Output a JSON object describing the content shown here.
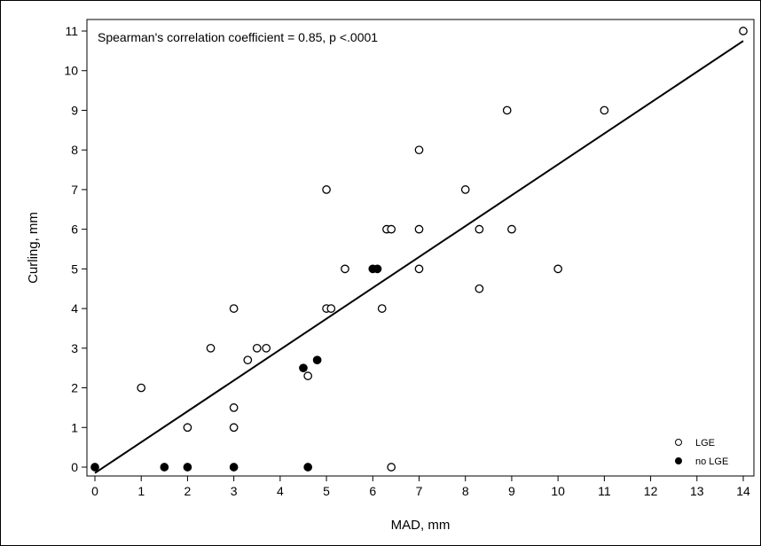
{
  "chart_data": {
    "type": "scatter",
    "title": "",
    "xlabel": "MAD, mm",
    "ylabel": "Curling, mm",
    "xlim": [
      0,
      14
    ],
    "ylim": [
      0,
      11
    ],
    "x_ticks": [
      "0",
      "1",
      "2",
      "3",
      "4",
      "5",
      "6",
      "7",
      "8",
      "9",
      "10",
      "11",
      "12",
      "13",
      "14"
    ],
    "y_ticks": [
      "0",
      "1",
      "2",
      "3",
      "4",
      "5",
      "6",
      "7",
      "8",
      "9",
      "10",
      "11"
    ],
    "grid": false,
    "legend_position": "bottom-right",
    "annotation": "Spearman's correlation coefficient = 0.85, p <.0001",
    "regression_line": {
      "x1": 0,
      "y1": -0.15,
      "x2": 14,
      "y2": 10.75
    },
    "series": [
      {
        "name": "LGE",
        "marker": "open-circle",
        "points": [
          [
            1,
            2
          ],
          [
            2,
            1
          ],
          [
            2.5,
            3
          ],
          [
            3,
            4
          ],
          [
            3,
            1.5
          ],
          [
            3,
            1
          ],
          [
            3.3,
            2.7
          ],
          [
            3.5,
            3
          ],
          [
            3.7,
            3
          ],
          [
            4.6,
            2.3
          ],
          [
            5,
            7
          ],
          [
            5,
            4
          ],
          [
            5.1,
            4
          ],
          [
            5.4,
            5
          ],
          [
            6.2,
            4
          ],
          [
            6.3,
            6
          ],
          [
            6.4,
            6
          ],
          [
            6.4,
            0
          ],
          [
            7,
            8
          ],
          [
            7,
            6
          ],
          [
            7,
            5
          ],
          [
            8,
            7
          ],
          [
            8.3,
            6
          ],
          [
            8.3,
            4.5
          ],
          [
            8.9,
            9
          ],
          [
            9,
            6
          ],
          [
            10,
            5
          ],
          [
            11,
            9
          ],
          [
            14,
            11
          ]
        ]
      },
      {
        "name": "no LGE",
        "marker": "filled-circle",
        "points": [
          [
            0,
            0
          ],
          [
            1.5,
            0
          ],
          [
            2,
            0
          ],
          [
            3,
            0
          ],
          [
            4.5,
            2.5
          ],
          [
            4.6,
            0
          ],
          [
            4.8,
            2.7
          ],
          [
            6,
            5
          ],
          [
            6.1,
            5
          ]
        ]
      }
    ]
  }
}
